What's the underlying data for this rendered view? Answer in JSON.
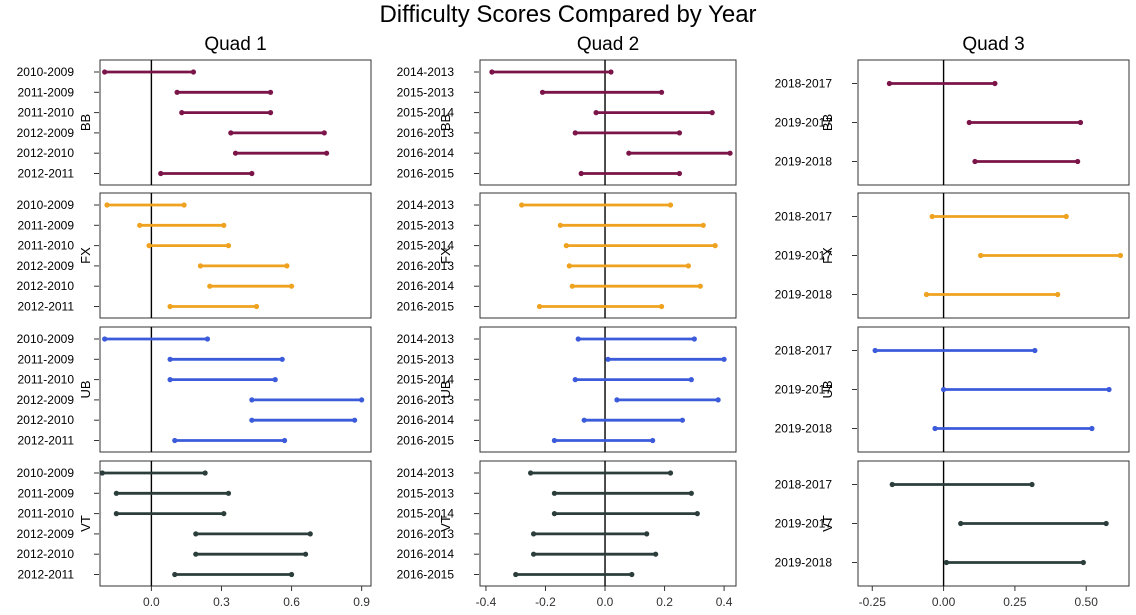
{
  "chart_data": {
    "type": "dumbbell",
    "title": "Difficulty Scores Compared by Year",
    "columns": [
      {
        "name": "Quad 1",
        "xlim": [
          -0.22,
          0.94
        ],
        "xticks": [
          0.0,
          0.3,
          0.6,
          0.9
        ],
        "xtick_labels": [
          "0.0",
          "0.3",
          "0.6",
          "0.9"
        ],
        "categories": [
          "2010-2009",
          "2011-2009",
          "2011-2010",
          "2012-2009",
          "2012-2010",
          "2012-2011"
        ],
        "panels": [
          {
            "event": "BB",
            "color": "#7b1448",
            "segments": [
              [
                -0.2,
                0.18
              ],
              [
                0.11,
                0.51
              ],
              [
                0.13,
                0.51
              ],
              [
                0.34,
                0.74
              ],
              [
                0.36,
                0.75
              ],
              [
                0.04,
                0.43
              ]
            ]
          },
          {
            "event": "FX",
            "color": "#efa21f",
            "segments": [
              [
                -0.19,
                0.14
              ],
              [
                -0.05,
                0.31
              ],
              [
                -0.01,
                0.33
              ],
              [
                0.21,
                0.58
              ],
              [
                0.25,
                0.6
              ],
              [
                0.08,
                0.45
              ]
            ]
          },
          {
            "event": "UB",
            "color": "#3b5bdb",
            "segments": [
              [
                -0.2,
                0.24
              ],
              [
                0.08,
                0.56
              ],
              [
                0.08,
                0.53
              ],
              [
                0.43,
                0.9
              ],
              [
                0.43,
                0.87
              ],
              [
                0.1,
                0.57
              ]
            ]
          },
          {
            "event": "VT",
            "color": "#2b3e3c",
            "segments": [
              [
                -0.21,
                0.23
              ],
              [
                -0.15,
                0.33
              ],
              [
                -0.15,
                0.31
              ],
              [
                0.19,
                0.68
              ],
              [
                0.19,
                0.66
              ],
              [
                0.1,
                0.6
              ]
            ]
          }
        ]
      },
      {
        "name": "Quad 2",
        "xlim": [
          -0.42,
          0.44
        ],
        "xticks": [
          -0.4,
          -0.2,
          0.0,
          0.2,
          0.4
        ],
        "xtick_labels": [
          "-0.4",
          "-0.2",
          "0.0",
          "0.2",
          "0.4"
        ],
        "categories": [
          "2014-2013",
          "2015-2013",
          "2015-2014",
          "2016-2013",
          "2016-2014",
          "2016-2015"
        ],
        "panels": [
          {
            "event": "BB",
            "color": "#7b1448",
            "segments": [
              [
                -0.38,
                0.02
              ],
              [
                -0.21,
                0.19
              ],
              [
                -0.03,
                0.36
              ],
              [
                -0.1,
                0.25
              ],
              [
                0.08,
                0.42
              ],
              [
                -0.08,
                0.25
              ]
            ]
          },
          {
            "event": "FX",
            "color": "#efa21f",
            "segments": [
              [
                -0.28,
                0.22
              ],
              [
                -0.15,
                0.33
              ],
              [
                -0.13,
                0.37
              ],
              [
                -0.12,
                0.28
              ],
              [
                -0.11,
                0.32
              ],
              [
                -0.22,
                0.19
              ]
            ]
          },
          {
            "event": "UB",
            "color": "#3b5bdb",
            "segments": [
              [
                -0.09,
                0.3
              ],
              [
                0.01,
                0.4
              ],
              [
                -0.1,
                0.29
              ],
              [
                0.04,
                0.38
              ],
              [
                -0.07,
                0.26
              ],
              [
                -0.17,
                0.16
              ]
            ]
          },
          {
            "event": "VT",
            "color": "#2b3e3c",
            "segments": [
              [
                -0.25,
                0.22
              ],
              [
                -0.17,
                0.29
              ],
              [
                -0.17,
                0.31
              ],
              [
                -0.24,
                0.14
              ],
              [
                -0.24,
                0.17
              ],
              [
                -0.3,
                0.09
              ]
            ]
          }
        ]
      },
      {
        "name": "Quad 3",
        "xlim": [
          -0.3,
          0.65
        ],
        "xticks": [
          -0.25,
          0.0,
          0.25,
          0.5
        ],
        "xtick_labels": [
          "-0.25",
          "0.00",
          "0.25",
          "0.50"
        ],
        "categories": [
          "2018-2017",
          "2019-2017",
          "2019-2018"
        ],
        "panels": [
          {
            "event": "BB",
            "color": "#7b1448",
            "segments": [
              [
                -0.19,
                0.18
              ],
              [
                0.09,
                0.48
              ],
              [
                0.11,
                0.47
              ]
            ]
          },
          {
            "event": "FX",
            "color": "#efa21f",
            "segments": [
              [
                -0.04,
                0.43
              ],
              [
                0.13,
                0.62
              ],
              [
                -0.06,
                0.4
              ]
            ]
          },
          {
            "event": "UB",
            "color": "#3b5bdb",
            "segments": [
              [
                -0.24,
                0.32
              ],
              [
                0.0,
                0.58
              ],
              [
                -0.03,
                0.52
              ]
            ]
          },
          {
            "event": "VT",
            "color": "#2b3e3c",
            "segments": [
              [
                -0.18,
                0.31
              ],
              [
                0.06,
                0.57
              ],
              [
                0.01,
                0.49
              ]
            ]
          }
        ]
      }
    ]
  }
}
